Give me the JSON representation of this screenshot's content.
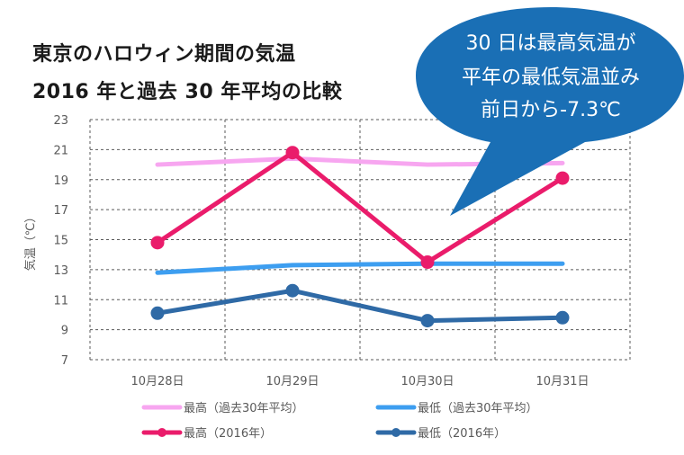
{
  "title": {
    "line1": "東京のハロウィン期間の気温",
    "line2": "2016 年と過去 30 年平均の比較"
  },
  "callout": {
    "line1": "30 日は最高気温が",
    "line2": "平年の最低気温並み",
    "line3": "前日から-7.3℃",
    "color": "#1a6fb5"
  },
  "chart_data": {
    "type": "line",
    "categories": [
      "10月28日",
      "10月29日",
      "10月30日",
      "10月31日"
    ],
    "ylabel": "気温（℃）",
    "ylim": [
      7,
      23
    ],
    "yticks": [
      7,
      9,
      11,
      13,
      15,
      17,
      19,
      21,
      23
    ],
    "grid": true,
    "legend_position": "bottom",
    "series": [
      {
        "name": "最高（過去30年平均）",
        "values": [
          20.0,
          20.4,
          20.0,
          20.1
        ],
        "color": "#f7a6f0",
        "marker": false
      },
      {
        "name": "最低（過去30年平均）",
        "values": [
          12.8,
          13.3,
          13.4,
          13.4
        ],
        "color": "#3d9ef0",
        "marker": false
      },
      {
        "name": "最高（2016年）",
        "values": [
          14.8,
          20.8,
          13.5,
          19.1
        ],
        "color": "#ea1c6b",
        "marker": true
      },
      {
        "name": "最低（2016年）",
        "values": [
          10.1,
          11.6,
          9.6,
          9.8
        ],
        "color": "#2f6aa6",
        "marker": true
      }
    ]
  }
}
